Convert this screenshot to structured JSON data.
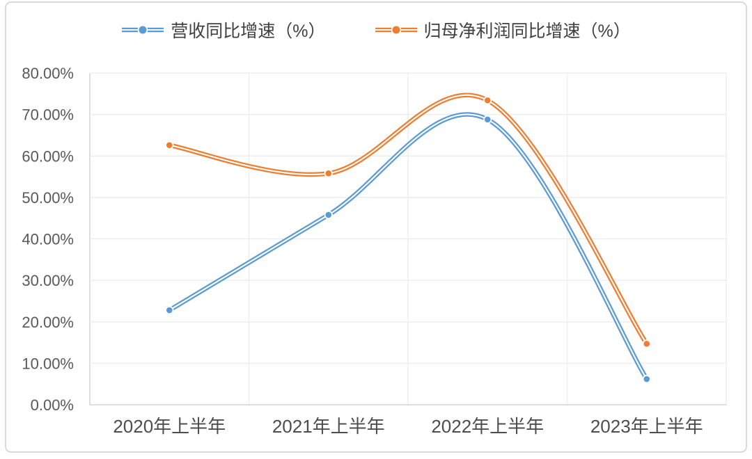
{
  "chart_data": {
    "type": "line",
    "smooth": true,
    "line_style": "double-stroke-with-center-dot-markers",
    "title": "",
    "categories": [
      "2020年上半年",
      "2021年上半年",
      "2022年上半年",
      "2023年上半年"
    ],
    "series": [
      {
        "name": "营收同比增速（%）",
        "color": "#5B9BD5",
        "values": [
          22.8,
          45.8,
          68.8,
          6.2
        ]
      },
      {
        "name": "归母净利润同比增速（%）",
        "color": "#ED7D31",
        "values": [
          62.6,
          55.8,
          73.4,
          14.7
        ]
      }
    ],
    "ylim": [
      0,
      80
    ],
    "ytick_step": 10,
    "ytick_labels": [
      "0.00%",
      "10.00%",
      "20.00%",
      "30.00%",
      "40.00%",
      "50.00%",
      "60.00%",
      "70.00%",
      "80.00%"
    ],
    "grid": "horizontal and vertical, light gray",
    "legend_position": "top-center"
  },
  "colors": {
    "series_blue": "#5B9BD5",
    "series_orange": "#ED7D31",
    "gridline": "#ededed",
    "axis_line": "#d6d6d6",
    "ytick_label": "#595959",
    "xtick_label": "#4d4d4d",
    "legend_text": "#404040",
    "frame_border": "#d9d9d9",
    "background": "#ffffff",
    "marker_halo": "#ffffff"
  }
}
